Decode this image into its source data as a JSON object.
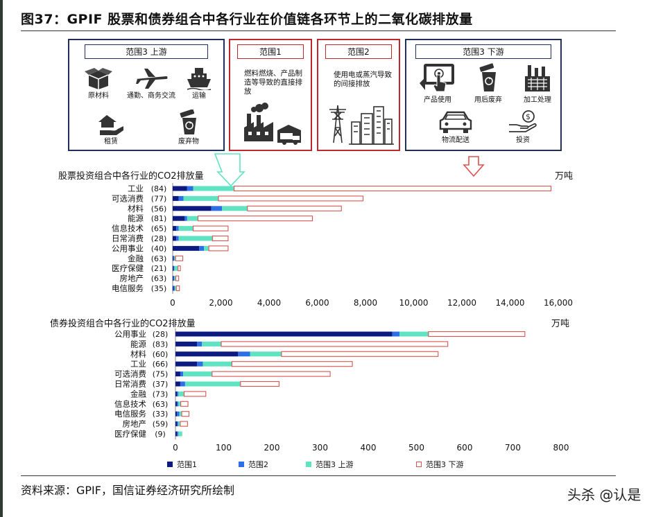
{
  "title": "图37：GPIF 股票和债券组合中各行业在价值链各环节上的二氧化碳排放量",
  "source": "资料来源：GPIF，国信证券经济研究所绘制",
  "watermark": "头杀 @认是",
  "colors": {
    "scope1": "#0d1a80",
    "scope2": "#2f6fe6",
    "scope3_up": "#5fe3c0",
    "scope3_down_edge": "#d9534f",
    "navy_border": "#1f2f5c",
    "red_border": "#c0262d"
  },
  "panels": {
    "upstream": {
      "title": "范围3 上游",
      "icons": [
        {
          "name": "box-icon",
          "label": "原材料"
        },
        {
          "name": "airplane-icon",
          "label": "通勤、商务交流"
        },
        {
          "name": "ship-icon",
          "label": "运输"
        },
        {
          "name": "house-hand-icon",
          "label": "租赁"
        },
        {
          "name": "recycle-bin-icon",
          "label": "废弃物"
        }
      ]
    },
    "scope1": {
      "title": "范围1",
      "desc": "燃料燃烧、产品制造等导致的直接排放"
    },
    "scope2": {
      "title": "范围2",
      "desc": "使用电或蒸汽导致的间接排放"
    },
    "downstream": {
      "title": "范围3 下游",
      "icons": [
        {
          "name": "touch-screen-icon",
          "label": "产品使用"
        },
        {
          "name": "recycle-bin-icon",
          "label": "用后废弃"
        },
        {
          "name": "factory-icon",
          "label": "加工处理"
        },
        {
          "name": "car-icon",
          "label": "物流配送"
        },
        {
          "name": "money-hand-icon",
          "label": "投资"
        }
      ]
    }
  },
  "legend": [
    "范围1",
    "范围2",
    "范围3 上游",
    "范围3 下游"
  ],
  "chart_data": [
    {
      "type": "bar",
      "orientation": "horizontal",
      "stacked": true,
      "title": "股票投资组合中各行业的CO2排放量",
      "unit": "万吨",
      "categories": [
        "工业",
        "可选消费",
        "材料",
        "能源",
        "信息技术",
        "日常消费",
        "公用事业",
        "金融",
        "医疗保健",
        "房地产",
        "电信服务"
      ],
      "counts": [
        "(84)",
        "(77)",
        "(56)",
        "(81)",
        "(65)",
        "(28)",
        "(40)",
        "(63)",
        "(21)",
        "(63)",
        "(35)"
      ],
      "xlim": [
        0,
        16000
      ],
      "xticks": [
        "0",
        "2,000",
        "4,000",
        "6,000",
        "8,000",
        "10,000",
        "12,000",
        "14,000",
        "16,000"
      ],
      "series": [
        {
          "name": "范围1",
          "values": [
            600,
            250,
            1600,
            500,
            150,
            150,
            1100,
            30,
            40,
            30,
            40
          ]
        },
        {
          "name": "范围2",
          "values": [
            250,
            200,
            450,
            100,
            100,
            100,
            200,
            40,
            30,
            40,
            50
          ]
        },
        {
          "name": "范围3 上游",
          "values": [
            1700,
            1450,
            1050,
            450,
            600,
            1400,
            200,
            50,
            150,
            60,
            60
          ]
        },
        {
          "name": "范围3 下游",
          "values": [
            13150,
            6000,
            3900,
            4750,
            1450,
            650,
            800,
            300,
            100,
            120,
            130
          ]
        }
      ]
    },
    {
      "type": "bar",
      "orientation": "horizontal",
      "stacked": true,
      "title": "债券投资组合中各行业的CO2排放量",
      "unit": "万吨",
      "categories": [
        "公用事业",
        "能源",
        "材料",
        "工业",
        "可选消费",
        "日常消费",
        "金融",
        "信息技术",
        "电信服务",
        "房地产",
        "医疗保健"
      ],
      "counts": [
        "(28)",
        "(83)",
        "(60)",
        "(66)",
        "(75)",
        "(37)",
        "(73)",
        "(63)",
        "(33)",
        "(59)",
        "(9)"
      ],
      "xlim": [
        0,
        800
      ],
      "xticks": [
        "0",
        "100",
        "200",
        "300",
        "400",
        "500",
        "600",
        "700",
        "800"
      ],
      "series": [
        {
          "name": "范围1",
          "values": [
            450,
            45,
            130,
            45,
            10,
            10,
            3,
            3,
            3,
            3,
            3
          ]
        },
        {
          "name": "范围2",
          "values": [
            15,
            10,
            25,
            12,
            6,
            10,
            3,
            3,
            5,
            3,
            3
          ]
        },
        {
          "name": "范围3 上游",
          "values": [
            60,
            40,
            65,
            60,
            60,
            115,
            12,
            5,
            5,
            4,
            8
          ]
        },
        {
          "name": "范围3 下游",
          "values": [
            200,
            470,
            325,
            250,
            245,
            80,
            45,
            15,
            15,
            15,
            0
          ]
        }
      ]
    }
  ]
}
